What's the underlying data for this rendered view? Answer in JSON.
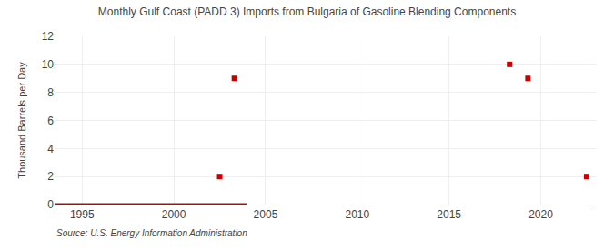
{
  "chart_data": {
    "type": "scatter",
    "title": "Monthly Gulf Coast (PADD 3) Imports from Bulgaria of Gasoline Blending Components",
    "ylabel": "Thousand Barrels per Day",
    "source": "Source: U.S. Energy Information Administration",
    "series": [
      {
        "type": "line",
        "x": [
          1993.5,
          2004.0
        ],
        "values": [
          0,
          0
        ],
        "color": "#8b1a1a",
        "line_style": "solid"
      },
      {
        "type": "scatter",
        "x": [
          2002.5,
          2003.3,
          2018.3,
          2019.3,
          2022.5
        ],
        "values": [
          2,
          9,
          10,
          9,
          2
        ],
        "color": "#cc0000",
        "marker": "square"
      }
    ],
    "xlim": [
      1993.5,
      2023.0
    ],
    "ylim": [
      0,
      12
    ],
    "xticks": [
      1995,
      2000,
      2005,
      2010,
      2015,
      2020
    ],
    "yticks": [
      0,
      2,
      4,
      6,
      8,
      10,
      12
    ],
    "grid": true
  }
}
